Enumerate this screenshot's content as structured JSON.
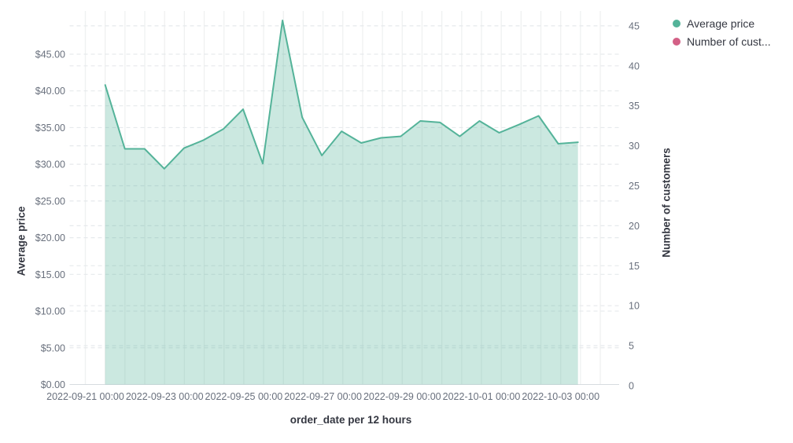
{
  "chart_data": {
    "type": "area",
    "xlabel": "order_date per 12 hours",
    "ylabel_left": "Average price",
    "ylabel_right": "Number of customers",
    "legend_position": "top-right",
    "grid": {
      "vertical": "solid every 12 hours",
      "horizontal": "dashed at left and right tick values"
    },
    "legend": [
      {
        "label": "Average price",
        "color": "#54B399"
      },
      {
        "label": "Number of cust...",
        "color": "#D36086"
      }
    ],
    "x": [
      "2022-09-21 12:00",
      "2022-09-22 00:00",
      "2022-09-22 12:00",
      "2022-09-23 00:00",
      "2022-09-23 12:00",
      "2022-09-24 00:00",
      "2022-09-24 12:00",
      "2022-09-25 00:00",
      "2022-09-25 12:00",
      "2022-09-26 00:00",
      "2022-09-26 12:00",
      "2022-09-27 00:00",
      "2022-09-27 12:00",
      "2022-09-28 00:00",
      "2022-09-28 12:00",
      "2022-09-29 00:00",
      "2022-09-29 12:00",
      "2022-09-30 00:00",
      "2022-09-30 12:00",
      "2022-10-01 00:00",
      "2022-10-01 12:00",
      "2022-10-02 00:00",
      "2022-10-02 12:00",
      "2022-10-03 00:00",
      "2022-10-03 12:00"
    ],
    "series": [
      {
        "name": "Average price",
        "axis": "left",
        "color": "#54B399",
        "fill_opacity": 0.3,
        "values": [
          40.8,
          32.1,
          32.1,
          29.4,
          32.2,
          33.3,
          34.8,
          37.5,
          30.1,
          49.6,
          36.4,
          31.2,
          34.5,
          32.9,
          33.6,
          33.8,
          35.9,
          35.7,
          33.8,
          35.9,
          34.3,
          35.4,
          36.6,
          32.8,
          33.0
        ]
      }
    ],
    "x_tick_labels": [
      "2022-09-21 00:00",
      "2022-09-23 00:00",
      "2022-09-25 00:00",
      "2022-09-27 00:00",
      "2022-09-29 00:00",
      "2022-10-01 00:00",
      "2022-10-03 00:00"
    ],
    "left_axis": {
      "tick_labels": [
        "$0.00",
        "$5.00",
        "$10.00",
        "$15.00",
        "$20.00",
        "$25.00",
        "$30.00",
        "$35.00",
        "$40.00",
        "$45.00"
      ],
      "tick_values": [
        0,
        5,
        10,
        15,
        20,
        25,
        30,
        35,
        40,
        45
      ],
      "range": [
        0,
        50
      ]
    },
    "right_axis": {
      "tick_labels": [
        "0",
        "5",
        "10",
        "15",
        "20",
        "25",
        "30",
        "35",
        "40",
        "45"
      ],
      "tick_values": [
        0,
        5,
        10,
        15,
        20,
        25,
        30,
        35,
        40,
        45
      ],
      "range": [
        0,
        46.8
      ]
    }
  },
  "colors": {
    "series_green": "#54B399",
    "series_pink": "#D36086",
    "tick_text": "#69707D",
    "title_text": "#343741",
    "grid_vertical": "#eff1f1",
    "grid_dashed": "#e6e9ec",
    "axis_line": "#d6dbe0"
  }
}
